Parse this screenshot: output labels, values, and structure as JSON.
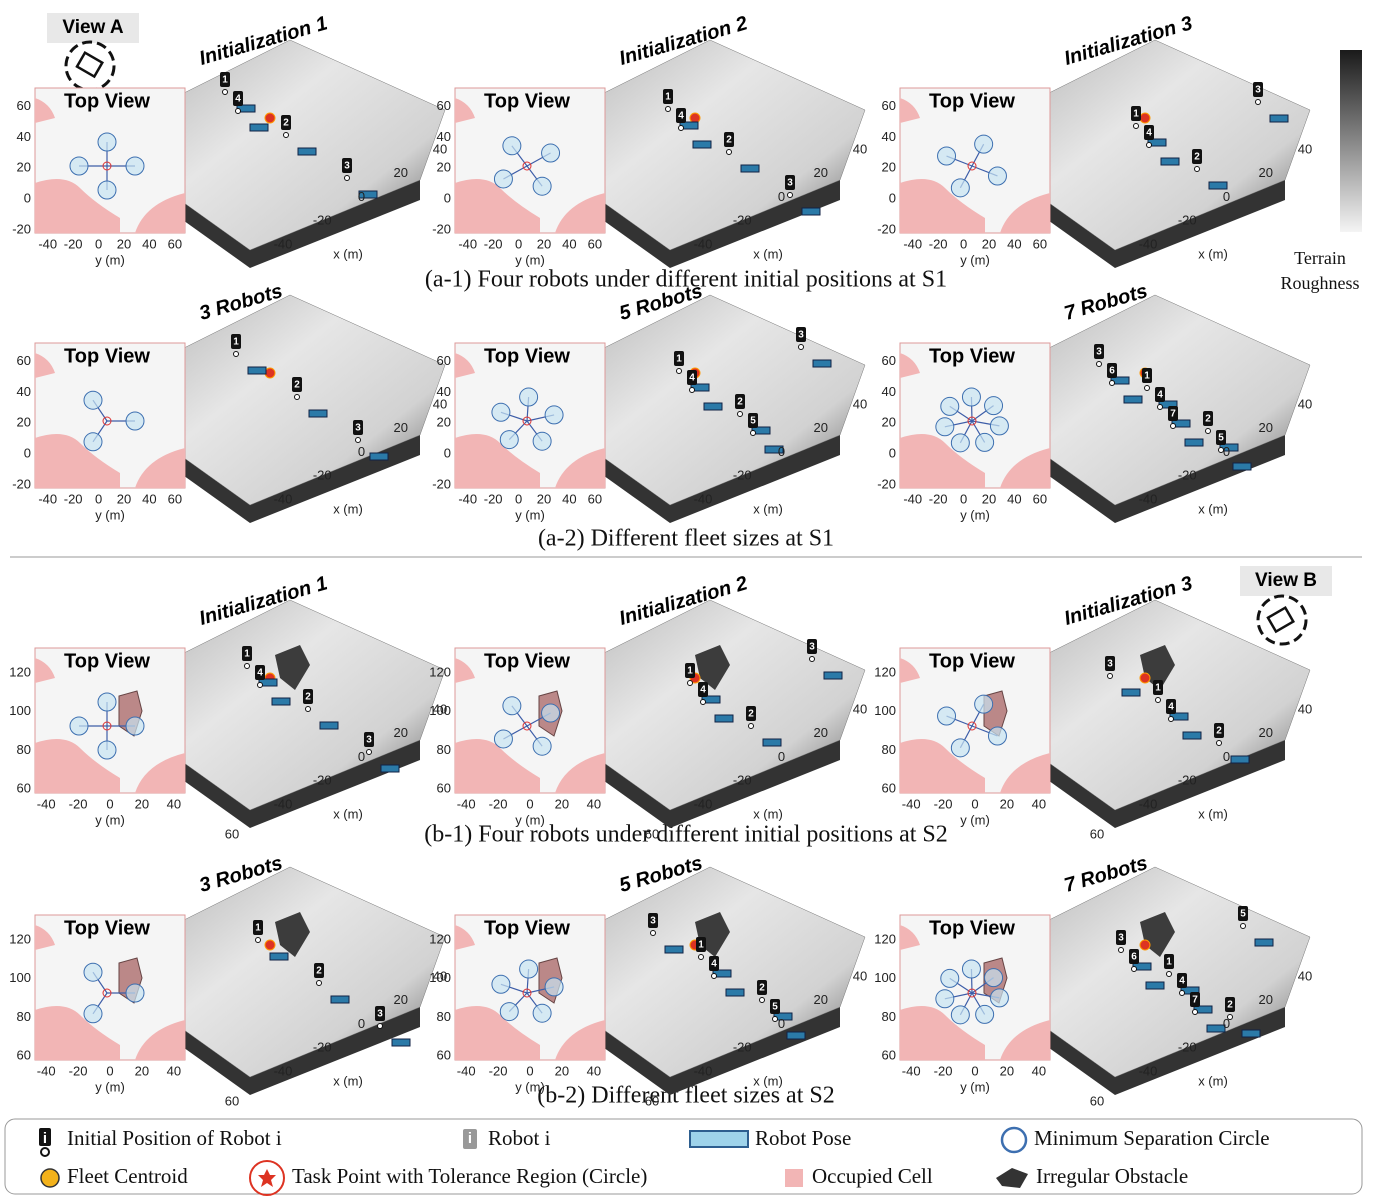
{
  "views": {
    "a": "View A",
    "b": "View B"
  },
  "colorbar_label": "Terrain Roughness",
  "groups": [
    {
      "inset": {
        "title": "Top View",
        "xlabel": "y (m)",
        "xlim": [
          -50,
          68
        ],
        "ylim": [
          -22,
          72
        ],
        "xticks": [
          -40,
          -20,
          0,
          20,
          40,
          60
        ],
        "yticks": [
          -20,
          0,
          20,
          40,
          60
        ]
      },
      "plot3d": {
        "xlabel": "x (m)",
        "ticks": [
          40,
          20,
          0,
          -20,
          -40
        ]
      },
      "rows": [
        {
          "caption": "(a-1) Four robots under different initial positions at S1",
          "panels": [
            {
              "title": "Initialization 1",
              "robots": [
                "1",
                "2",
                "3",
                "4"
              ]
            },
            {
              "title": "Initialization 2",
              "robots": [
                "1",
                "2",
                "3",
                "4"
              ]
            },
            {
              "title": "Initialization 3",
              "robots": [
                "1",
                "2",
                "3",
                "4"
              ]
            }
          ]
        },
        {
          "caption": "(a-2) Different fleet sizes at S1",
          "panels": [
            {
              "title": "3 Robots",
              "robots": [
                "1",
                "2",
                "3"
              ]
            },
            {
              "title": "5 Robots",
              "robots": [
                "1",
                "2",
                "3",
                "4",
                "5"
              ]
            },
            {
              "title": "7 Robots",
              "robots": [
                "1",
                "2",
                "3",
                "4",
                "5",
                "6",
                "7"
              ]
            }
          ]
        }
      ]
    },
    {
      "inset": {
        "title": "Top View",
        "xlabel": "y (m)",
        "xlim": [
          -47,
          47
        ],
        "ylim": [
          58,
          133
        ],
        "xticks": [
          -40,
          -20,
          0,
          20,
          40
        ],
        "yticks": [
          60,
          80,
          100,
          120
        ]
      },
      "plot3d": {
        "xlabel": "x (m)",
        "ticks": [
          40,
          20,
          0,
          -20,
          -40,
          60
        ]
      },
      "rows": [
        {
          "caption": "(b-1) Four robots under different initial positions at S2",
          "panels": [
            {
              "title": "Initialization 1",
              "robots": [
                "1",
                "2",
                "3",
                "4"
              ]
            },
            {
              "title": "Initialization 2",
              "robots": [
                "1",
                "2",
                "3",
                "4"
              ]
            },
            {
              "title": "Initialization 3",
              "robots": [
                "1",
                "2",
                "3",
                "4"
              ]
            }
          ]
        },
        {
          "caption": "(b-2) Different fleet sizes at S2",
          "panels": [
            {
              "title": "3 Robots",
              "robots": [
                "1",
                "2",
                "3"
              ]
            },
            {
              "title": "5 Robots",
              "robots": [
                "1",
                "2",
                "3",
                "4",
                "5"
              ]
            },
            {
              "title": "7 Robots",
              "robots": [
                "1",
                "2",
                "3",
                "4",
                "5",
                "6",
                "7"
              ]
            }
          ]
        }
      ]
    }
  ],
  "legend": [
    {
      "label": "Initial Position of Robot i",
      "marker": "i"
    },
    {
      "label": "Robot i",
      "marker": "i"
    },
    {
      "label": "Robot Pose"
    },
    {
      "label": "Minimum Separation Circle"
    },
    {
      "label": "Fleet Centroid"
    },
    {
      "label": "Task Point with Tolerance Region (Circle)"
    },
    {
      "label": "Occupied Cell"
    },
    {
      "label": "Irregular Obstacle"
    }
  ]
}
